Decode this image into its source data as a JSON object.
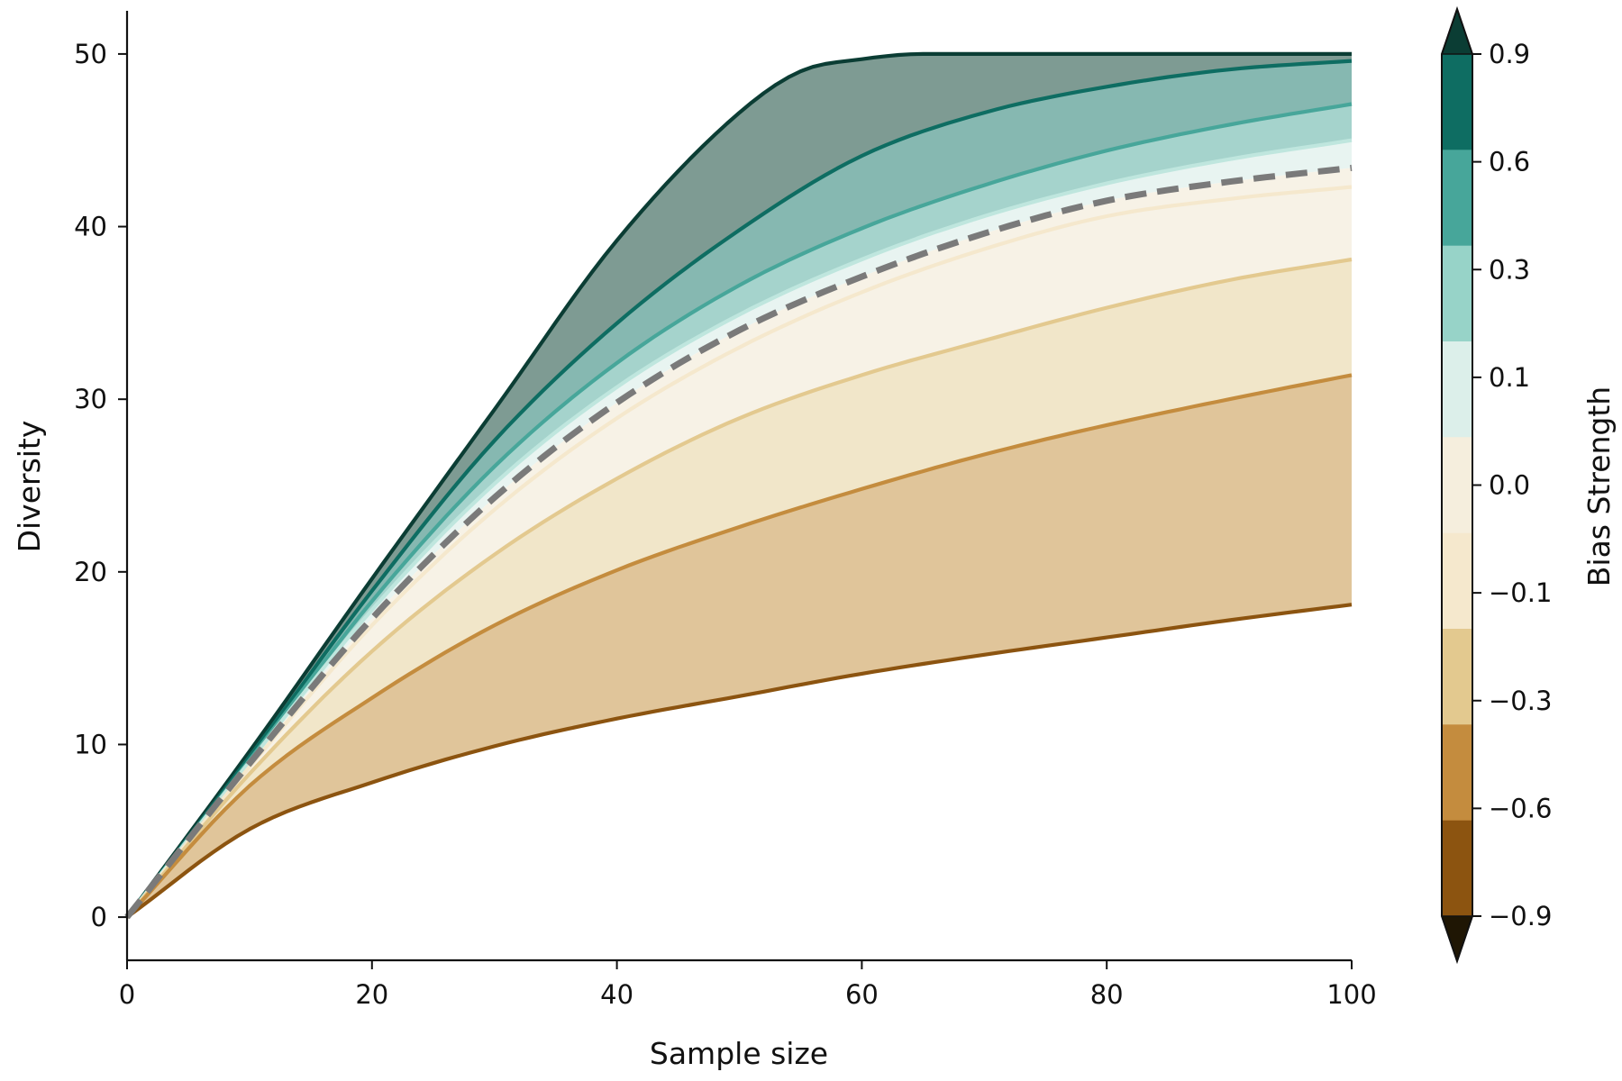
{
  "chart_data": {
    "type": "area",
    "xlabel": "Sample size",
    "ylabel": "Diversity",
    "xlim": [
      0,
      100
    ],
    "ylim": [
      -2.5,
      52.5
    ],
    "xticks": [
      0,
      20,
      40,
      60,
      80,
      100
    ],
    "yticks": [
      0,
      10,
      20,
      30,
      40,
      50
    ],
    "grid": false,
    "series": [
      {
        "bias": 0.9,
        "color": "#0b3d34",
        "x": [
          0,
          10,
          20,
          30,
          40,
          50,
          55,
          60,
          65,
          70,
          80,
          90,
          100
        ],
        "values": [
          0,
          9.6,
          19.6,
          29.4,
          39.2,
          46.6,
          49.0,
          49.7,
          50.0,
          50.0,
          50.0,
          50.0,
          50.0
        ]
      },
      {
        "bias": 0.6,
        "color": "#0e6d62",
        "x": [
          0,
          10,
          20,
          30,
          40,
          50,
          60,
          70,
          80,
          90,
          100
        ],
        "values": [
          0,
          9.3,
          18.9,
          27.6,
          34.4,
          39.8,
          44.1,
          46.6,
          48.1,
          49.1,
          49.6
        ]
      },
      {
        "bias": 0.3,
        "color": "#47a69a",
        "x": [
          0,
          10,
          20,
          30,
          40,
          50,
          60,
          70,
          80,
          90,
          100
        ],
        "values": [
          0,
          9.1,
          18.3,
          26.1,
          32.1,
          36.6,
          39.9,
          42.4,
          44.4,
          45.9,
          47.1
        ]
      },
      {
        "bias": 0.1,
        "color": "#bfe6de",
        "x": [
          0,
          10,
          20,
          30,
          40,
          50,
          60,
          70,
          80,
          90,
          100
        ],
        "values": [
          0,
          9.0,
          17.8,
          25.1,
          30.7,
          34.9,
          38.1,
          40.6,
          42.5,
          43.9,
          45.0
        ]
      },
      {
        "bias": -0.1,
        "color": "#f5e8cd",
        "x": [
          0,
          10,
          20,
          30,
          40,
          50,
          60,
          70,
          80,
          90,
          100
        ],
        "values": [
          0,
          8.7,
          16.9,
          23.6,
          28.9,
          33.0,
          36.2,
          38.7,
          40.6,
          41.6,
          42.3
        ]
      },
      {
        "bias": -0.3,
        "color": "#e3c98f",
        "x": [
          0,
          10,
          20,
          30,
          40,
          50,
          60,
          70,
          80,
          90,
          100
        ],
        "values": [
          0,
          8.3,
          15.4,
          21.0,
          25.4,
          28.9,
          31.4,
          33.4,
          35.3,
          36.9,
          38.1
        ]
      },
      {
        "bias": -0.6,
        "color": "#c48c3e",
        "x": [
          0,
          10,
          20,
          30,
          40,
          50,
          60,
          70,
          80,
          90,
          100
        ],
        "values": [
          0,
          7.6,
          12.7,
          16.9,
          20.1,
          22.6,
          24.8,
          26.8,
          28.5,
          30.0,
          31.4
        ]
      },
      {
        "bias": -0.9,
        "color": "#8c5410",
        "x": [
          0,
          10,
          20,
          30,
          40,
          50,
          60,
          70,
          80,
          90,
          100
        ],
        "values": [
          0,
          5.1,
          7.8,
          9.9,
          11.5,
          12.8,
          14.1,
          15.2,
          16.2,
          17.2,
          18.1
        ]
      }
    ],
    "band_fills": [
      {
        "upper": 0.9,
        "lower": 0.6,
        "color": "#7e9b93"
      },
      {
        "upper": 0.6,
        "lower": 0.3,
        "color": "#86b8b1"
      },
      {
        "upper": 0.3,
        "lower": 0.1,
        "color": "#a5d3cc"
      },
      {
        "upper": 0.1,
        "lower": "baseline",
        "color": "#e8f4f1"
      },
      {
        "upper": "baseline",
        "lower": -0.1,
        "color": "#f7f2e6"
      },
      {
        "upper": -0.1,
        "lower": -0.3,
        "color": "#f7f2e6"
      },
      {
        "upper": -0.3,
        "lower": -0.6,
        "color": "#f1e6c9"
      },
      {
        "upper": -0.6,
        "lower": -0.9,
        "color": "#e0c59a"
      }
    ],
    "baseline": {
      "style": "dashed",
      "color": "#7a7a7a",
      "x": [
        0,
        10,
        20,
        30,
        40,
        50,
        60,
        70,
        80,
        90,
        100
      ],
      "values": [
        0,
        8.9,
        17.3,
        24.3,
        29.8,
        34.0,
        37.1,
        39.6,
        41.5,
        42.6,
        43.4
      ]
    },
    "colorbar": {
      "label": "Bias Strength",
      "ticks": [
        "0.9",
        "0.6",
        "0.3",
        "0.1",
        "0.0",
        "−0.1",
        "−0.3",
        "−0.6",
        "−0.9"
      ],
      "colors": [
        "#0e6d62",
        "#47a69a",
        "#97d3c8",
        "#dcefea",
        "#f5eedd",
        "#f5e8cd",
        "#e3c98f",
        "#c48c3e",
        "#8c5410"
      ],
      "extend_top_color": "#0b3d34",
      "extend_bottom_color": "#1f1604"
    }
  }
}
